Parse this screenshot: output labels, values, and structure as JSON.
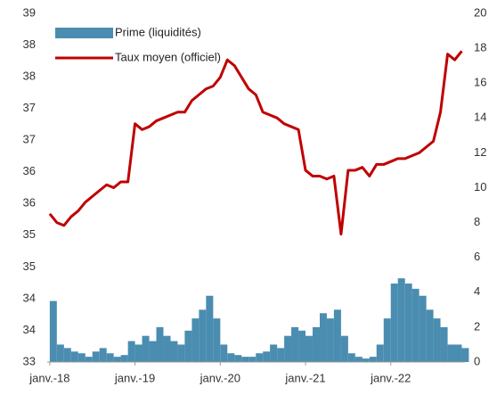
{
  "chart_data": {
    "type": "bar_line",
    "x": [
      2018.0,
      2018.083,
      2018.167,
      2018.25,
      2018.333,
      2018.417,
      2018.5,
      2018.583,
      2018.667,
      2018.75,
      2018.833,
      2018.917,
      2019.0,
      2019.083,
      2019.167,
      2019.25,
      2019.333,
      2019.417,
      2019.5,
      2019.583,
      2019.667,
      2019.75,
      2019.833,
      2019.917,
      2020.0,
      2020.083,
      2020.167,
      2020.25,
      2020.333,
      2020.417,
      2020.5,
      2020.583,
      2020.667,
      2020.75,
      2020.833,
      2020.917,
      2021.0,
      2021.083,
      2021.167,
      2021.25,
      2021.333,
      2021.417,
      2021.5,
      2021.583,
      2021.667,
      2021.75,
      2021.833,
      2021.917,
      2022.0,
      2022.083,
      2022.167,
      2022.25,
      2022.333,
      2022.417,
      2022.5,
      2022.583,
      2022.667,
      2022.75,
      2022.833
    ],
    "series": [
      {
        "name": "Prime (liquidités)",
        "kind": "bar",
        "axis": "y2",
        "color": "#4a8db0",
        "values": [
          3.5,
          1.0,
          0.8,
          0.6,
          0.5,
          0.3,
          0.6,
          0.8,
          0.5,
          0.3,
          0.4,
          1.2,
          1.0,
          1.5,
          1.2,
          2.0,
          1.5,
          1.2,
          1.0,
          1.8,
          2.5,
          3.0,
          3.8,
          2.5,
          1.0,
          0.5,
          0.4,
          0.3,
          0.3,
          0.5,
          0.6,
          1.0,
          0.8,
          1.5,
          2.0,
          1.8,
          1.5,
          2.0,
          2.8,
          2.5,
          3.0,
          1.5,
          0.5,
          0.3,
          0.2,
          0.3,
          1.0,
          2.5,
          4.5,
          4.8,
          4.5,
          4.2,
          3.8,
          3.0,
          2.5,
          2.0,
          1.0,
          1.0,
          0.8
        ]
      },
      {
        "name": "Taux moyen (officiel)",
        "kind": "line",
        "axis": "y",
        "color": "#c00000",
        "values": [
          35.55,
          35.4,
          35.35,
          35.5,
          35.6,
          35.75,
          35.85,
          35.95,
          36.05,
          36.0,
          36.1,
          36.1,
          37.1,
          37.0,
          37.05,
          37.15,
          37.2,
          37.25,
          37.3,
          37.3,
          37.5,
          37.6,
          37.7,
          37.75,
          37.9,
          38.2,
          38.1,
          37.9,
          37.7,
          37.6,
          37.3,
          37.25,
          37.2,
          37.1,
          37.05,
          37.0,
          36.3,
          36.2,
          36.2,
          36.15,
          36.2,
          35.2,
          36.3,
          36.3,
          36.35,
          36.2,
          36.4,
          36.4,
          36.45,
          36.5,
          36.5,
          36.55,
          36.6,
          36.7,
          36.8,
          37.3,
          38.3,
          38.2,
          38.35
        ]
      }
    ],
    "xlim": [
      2017.97,
      2022.87
    ],
    "xticks": [
      {
        "value": 2018,
        "label": "janv.-18"
      },
      {
        "value": 2019,
        "label": "janv.-19"
      },
      {
        "value": 2020,
        "label": "janv.-20"
      },
      {
        "value": 2021,
        "label": "janv.-21"
      },
      {
        "value": 2022,
        "label": "janv.-22"
      }
    ],
    "ylim": [
      33,
      39
    ],
    "yticks": [
      33,
      {
        "value": 33.545,
        "label": "34"
      },
      {
        "value": 34.091,
        "label": "34"
      },
      {
        "value": 34.636,
        "label": "35"
      },
      {
        "value": 35.182,
        "label": "35"
      },
      {
        "value": 35.727,
        "label": "36"
      },
      {
        "value": 36.273,
        "label": "36"
      },
      {
        "value": 36.818,
        "label": "37"
      },
      {
        "value": 37.364,
        "label": "37"
      },
      {
        "value": 37.909,
        "label": "38"
      },
      {
        "value": 38.455,
        "label": "38"
      },
      39
    ],
    "y2lim": [
      0,
      20
    ],
    "y2ticks": [
      0,
      2,
      4,
      6,
      8,
      10,
      12,
      14,
      16,
      18,
      20
    ],
    "legend": "top-left"
  }
}
